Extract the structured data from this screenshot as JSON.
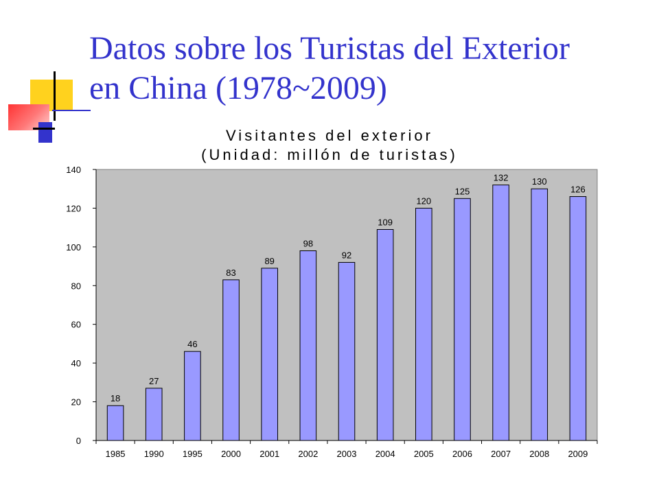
{
  "slide": {
    "title_line1": "Datos sobre los Turistas del Exterior",
    "title_line2": "en China (1978~2009)"
  },
  "colors": {
    "title": "#3333cc",
    "plot_bg": "#c0c0c0",
    "bar_fill": "#9999ff",
    "bar_stroke": "#000000"
  },
  "chart_data": {
    "type": "bar",
    "title_line1": "Visitantes del exterior",
    "title_line2": "(Unidad: millón de turistas)",
    "categories": [
      "1985",
      "1990",
      "1995",
      "2000",
      "2001",
      "2002",
      "2003",
      "2004",
      "2005",
      "2006",
      "2007",
      "2008",
      "2009"
    ],
    "values": [
      18,
      27,
      46,
      83,
      89,
      98,
      92,
      109,
      120,
      125,
      132,
      130,
      126
    ],
    "ylim": [
      0,
      140
    ],
    "yticks": [
      0,
      20,
      40,
      60,
      80,
      100,
      120,
      140
    ],
    "grid": false,
    "legend": "none"
  }
}
